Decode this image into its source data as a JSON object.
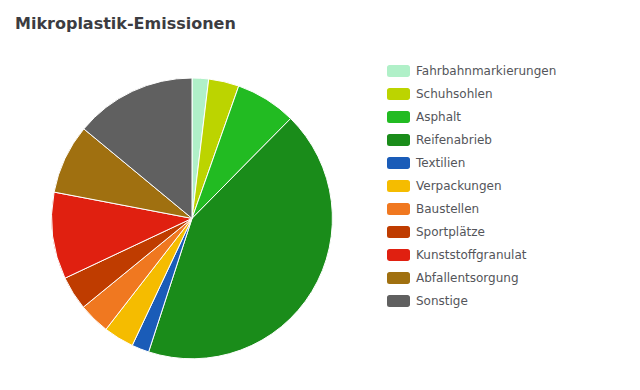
{
  "chart_data": {
    "type": "pie",
    "title": "Mikroplastik-Emissionen",
    "categories": [
      "Fahrbahnmarkierungen",
      "Schuhsohlen",
      "Asphalt",
      "Reifenabrieb",
      "Textilien",
      "Verpackungen",
      "Baustellen",
      "Sportplätze",
      "Kunststoffgranulat",
      "Abfallentsorgung",
      "Sonstige"
    ],
    "values": [
      1.9,
      3.5,
      7.0,
      42.6,
      2.0,
      3.5,
      3.6,
      3.9,
      10.0,
      8.0,
      14.0
    ],
    "colors": [
      "#b0f0c8",
      "#bcd400",
      "#22bb22",
      "#1a8c1a",
      "#1a5cb8",
      "#f5bc00",
      "#f07820",
      "#bf3c00",
      "#e02010",
      "#a07010",
      "#606060"
    ],
    "legend": "right"
  }
}
